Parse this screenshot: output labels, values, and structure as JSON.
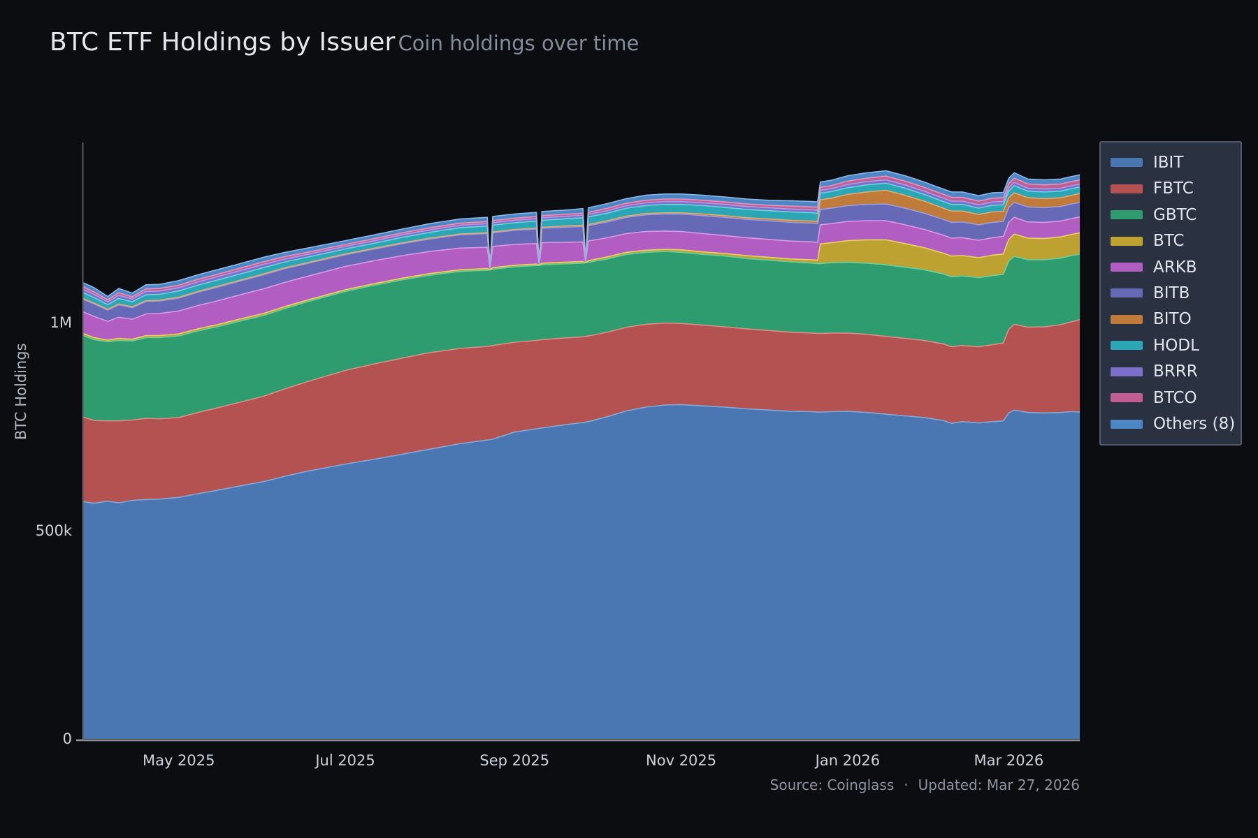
{
  "header": {
    "title": "BTC ETF Holdings by Issuer",
    "subtitle": "Coin holdings over time"
  },
  "footer": {
    "source": "Source: Coinglass",
    "separator": "·",
    "updated": "Updated: Mar 27, 2026"
  },
  "chart_data": {
    "type": "area",
    "stacked": true,
    "title": "BTC ETF Holdings by Issuer",
    "subtitle": "Coin holdings over time",
    "ylabel": "BTC Holdings",
    "values_unit": "thousand BTC",
    "x_unit": "days since 2025-03-27",
    "x_range_days": [
      0,
      365
    ],
    "ylim_thousand": [
      0,
      1430
    ],
    "grid": false,
    "legend_position": "right",
    "background": "#0c0d11",
    "axis_color": "#555a61",
    "baseline_color": "#90959d",
    "tick_text_color": "#ccd2da",
    "y_ticks": [
      {
        "value_k": 0,
        "label": "0"
      },
      {
        "value_k": 500,
        "label": "500k"
      },
      {
        "value_k": 1000,
        "label": "1M"
      }
    ],
    "x_ticks": [
      {
        "day": 35,
        "label": "May 2025"
      },
      {
        "day": 96,
        "label": "Jul 2025"
      },
      {
        "day": 158,
        "label": "Sep 2025"
      },
      {
        "day": 219,
        "label": "Nov 2025"
      },
      {
        "day": 280,
        "label": "Jan 2026"
      },
      {
        "day": 339,
        "label": "Mar 2026"
      }
    ],
    "days": [
      0,
      4,
      9,
      13,
      18,
      23,
      28,
      35,
      42,
      49,
      57,
      66,
      74,
      82,
      96,
      106,
      117,
      127,
      138,
      148,
      149,
      150,
      158,
      166,
      167,
      168,
      176,
      183,
      184,
      185,
      192,
      199,
      206,
      213,
      219,
      227,
      235,
      243,
      251,
      259,
      267,
      269,
      270,
      274,
      280,
      287,
      294,
      301,
      308,
      315,
      318,
      322,
      328,
      333,
      337,
      339,
      341,
      346,
      352,
      358,
      362,
      365
    ],
    "series": [
      {
        "name": "IBIT",
        "color": "#4a76b2",
        "line": "#82aad8",
        "values": [
          570,
          566,
          571,
          567,
          573,
          575,
          576,
          580,
          589,
          597,
          607,
          618,
          631,
          643,
          660,
          671,
          684,
          696,
          709,
          718,
          719,
          720,
          737,
          745,
          746,
          747,
          754,
          760,
          761,
          762,
          774,
          788,
          797,
          802,
          803,
          800,
          797,
          793,
          790,
          787,
          786,
          785,
          785,
          786,
          787,
          784,
          780,
          776,
          772,
          765,
          758,
          762,
          759,
          762,
          764,
          783,
          790,
          784,
          783,
          784,
          786,
          785
        ]
      },
      {
        "name": "FBTC",
        "color": "#b35250",
        "line": "#d98e88",
        "values": [
          203,
          199,
          193,
          197,
          193,
          195,
          193,
          192,
          195,
          198,
          201,
          205,
          210,
          215,
          225,
          229,
          231,
          232,
          229,
          225,
          225,
          225,
          216,
          212,
          212,
          212,
          209,
          206,
          206,
          206,
          203,
          201,
          199,
          197,
          195,
          194,
          193,
          192,
          191,
          190,
          189,
          189,
          189,
          189,
          188,
          188,
          187,
          186,
          185,
          184,
          184,
          183,
          183,
          185,
          187,
          201,
          206,
          205,
          207,
          211,
          216,
          222
        ]
      },
      {
        "name": "GBTC",
        "color": "#2e9c6e",
        "line": "#66cfa0",
        "values": [
          196,
          194,
          190,
          193,
          190,
          194,
          195,
          196,
          196,
          195,
          195,
          194,
          193,
          192,
          190,
          189,
          188,
          186,
          185,
          183,
          183,
          183,
          181,
          180,
          180,
          180,
          178,
          177,
          177,
          177,
          176,
          175,
          173,
          172,
          171,
          170,
          170,
          169,
          169,
          169,
          168,
          168,
          168,
          169,
          170,
          171,
          172,
          171,
          170,
          168,
          168,
          167,
          166,
          166,
          165,
          164,
          163,
          162,
          161,
          160,
          159,
          158
        ]
      },
      {
        "name": "BTC",
        "color": "#bda232",
        "line": "#e6d367",
        "values": [
          5,
          5,
          4,
          5,
          4,
          5,
          5,
          5,
          5,
          5,
          5,
          5,
          5,
          4,
          4,
          4,
          4,
          4,
          4,
          4,
          0,
          4,
          4,
          4,
          0,
          4,
          4,
          4,
          0,
          4,
          5,
          5,
          5,
          5,
          6,
          6,
          6,
          7,
          7,
          7,
          8,
          8,
          47,
          48,
          52,
          56,
          60,
          57,
          53,
          50,
          50,
          49,
          48,
          49,
          49,
          52,
          54,
          52,
          51,
          51,
          51,
          51
        ]
      },
      {
        "name": "ARKB",
        "color": "#b25dc1",
        "line": "#da99e6",
        "values": [
          52,
          51,
          45,
          51,
          48,
          52,
          53,
          55,
          56,
          57,
          58,
          59,
          58,
          57,
          56,
          55,
          54,
          53,
          52,
          51,
          2,
          51,
          50,
          49,
          2,
          49,
          48,
          47,
          2,
          47,
          46,
          45,
          45,
          44,
          44,
          44,
          43,
          43,
          43,
          43,
          43,
          43,
          46,
          46,
          46,
          46,
          46,
          45,
          44,
          43,
          43,
          43,
          42,
          42,
          42,
          41,
          40,
          39,
          39,
          38,
          38,
          38
        ]
      },
      {
        "name": "BITB",
        "color": "#666ab6",
        "line": "#9a9ede",
        "values": [
          30,
          30,
          27,
          30,
          28,
          30,
          30,
          31,
          32,
          33,
          33,
          34,
          33,
          31,
          28,
          28,
          29,
          30,
          32,
          33,
          1,
          33,
          34,
          35,
          1,
          35,
          36,
          37,
          1,
          37,
          38,
          39,
          40,
          41,
          42,
          43,
          44,
          44,
          45,
          45,
          45,
          45,
          37,
          37,
          38,
          39,
          40,
          40,
          39,
          38,
          38,
          38,
          37,
          37,
          36,
          36,
          36,
          36,
          35,
          35,
          35,
          35
        ]
      },
      {
        "name": "BITO",
        "color": "#c07a3a",
        "line": "#e2aa6e",
        "values": [
          2,
          2,
          2,
          2,
          2,
          2,
          2,
          2,
          2,
          2,
          2,
          2,
          2,
          2,
          2,
          2,
          2,
          2,
          2,
          2,
          0,
          2,
          2,
          2,
          0,
          2,
          3,
          3,
          0,
          3,
          3,
          3,
          3,
          3,
          3,
          4,
          4,
          4,
          4,
          5,
          5,
          5,
          23,
          24,
          27,
          30,
          33,
          31,
          29,
          27,
          27,
          26,
          25,
          25,
          24,
          23,
          23,
          22,
          22,
          21,
          21,
          21
        ]
      },
      {
        "name": "HODL",
        "color": "#2ba6b4",
        "line": "#6cd4dd",
        "values": [
          14,
          13,
          11,
          13,
          12,
          14,
          14,
          15,
          15,
          15,
          15,
          15,
          14,
          13,
          12,
          12,
          13,
          14,
          15,
          16,
          1,
          16,
          16,
          17,
          1,
          17,
          17,
          18,
          1,
          18,
          18,
          19,
          19,
          20,
          20,
          20,
          20,
          20,
          20,
          20,
          20,
          20,
          16,
          16,
          16,
          17,
          17,
          17,
          16,
          16,
          16,
          16,
          15,
          16,
          16,
          16,
          17,
          16,
          16,
          16,
          16,
          16
        ]
      },
      {
        "name": "BRRR",
        "color": "#7c6fca",
        "line": "#ab9fe9",
        "values": [
          8,
          8,
          7,
          8,
          7,
          8,
          8,
          8,
          8,
          8,
          8,
          8,
          7,
          7,
          6,
          6,
          6,
          6,
          6,
          6,
          0,
          6,
          6,
          6,
          0,
          6,
          6,
          6,
          0,
          6,
          6,
          6,
          7,
          7,
          7,
          7,
          7,
          7,
          7,
          7,
          7,
          7,
          7,
          7,
          8,
          8,
          8,
          8,
          8,
          8,
          8,
          8,
          8,
          8,
          8,
          8,
          8,
          7,
          7,
          7,
          7,
          7
        ]
      },
      {
        "name": "BTCO",
        "color": "#c05d93",
        "line": "#e495c0",
        "values": [
          6,
          6,
          5,
          6,
          5,
          6,
          6,
          6,
          6,
          6,
          6,
          6,
          6,
          5,
          5,
          5,
          5,
          5,
          5,
          5,
          1,
          5,
          5,
          5,
          1,
          5,
          5,
          5,
          1,
          5,
          6,
          6,
          6,
          6,
          6,
          6,
          6,
          6,
          6,
          7,
          7,
          7,
          7,
          7,
          8,
          8,
          9,
          9,
          9,
          9,
          9,
          9,
          9,
          9,
          9,
          10,
          10,
          10,
          10,
          10,
          10,
          10
        ]
      },
      {
        "name": "Others (8)",
        "color": "#4d86c5",
        "line": "#8ab8e8",
        "values": [
          10,
          10,
          8,
          10,
          9,
          10,
          10,
          11,
          11,
          11,
          11,
          11,
          10,
          10,
          9,
          9,
          9,
          10,
          10,
          10,
          1,
          10,
          10,
          10,
          1,
          10,
          10,
          11,
          1,
          11,
          11,
          11,
          12,
          12,
          12,
          12,
          12,
          12,
          12,
          13,
          13,
          13,
          13,
          13,
          13,
          13,
          13,
          13,
          13,
          13,
          13,
          13,
          13,
          13,
          13,
          13,
          13,
          12,
          12,
          12,
          12,
          12
        ]
      }
    ]
  }
}
